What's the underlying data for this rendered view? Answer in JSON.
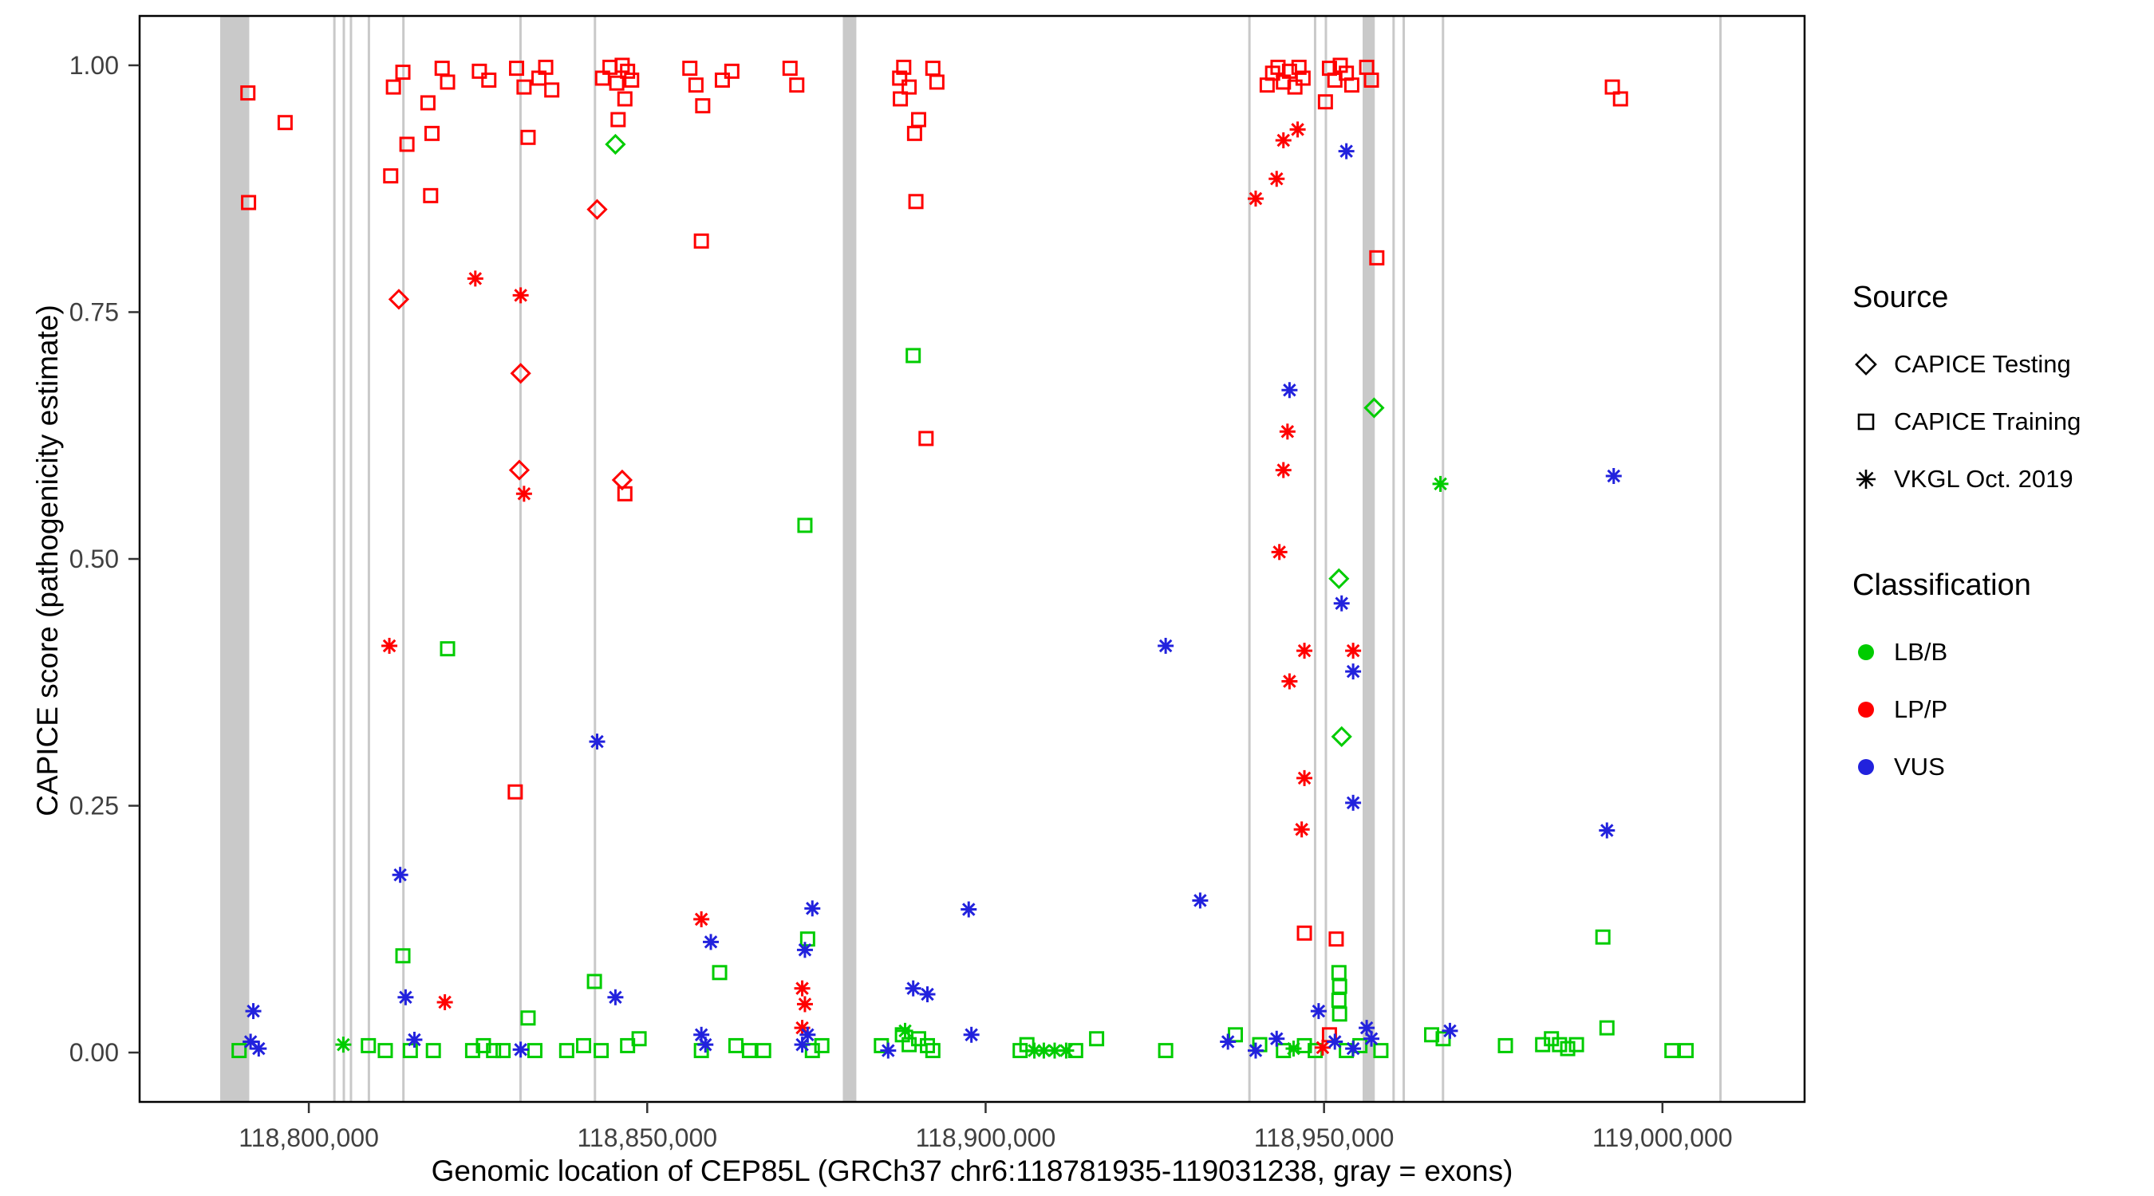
{
  "chart_data": {
    "type": "scatter",
    "title": "",
    "xlabel": "Genomic location of CEP85L (GRCh37 chr6:118781935-119031238, gray = exons)",
    "ylabel": "CAPICE score (pathogenicity estimate)",
    "xlim": [
      118775000,
      119021000
    ],
    "ylim": [
      -0.05,
      1.05
    ],
    "x_ticks": [
      118800000,
      118850000,
      118900000,
      118950000,
      119000000
    ],
    "x_tick_labels": [
      "118,800,000",
      "118,850,000",
      "118,900,000",
      "118,950,000",
      "119,000,000"
    ],
    "y_ticks": [
      0,
      0.25,
      0.5,
      0.75,
      1
    ],
    "y_tick_labels": [
      "0.00",
      "0.25",
      "0.50",
      "0.75",
      "1.00"
    ],
    "grid": false,
    "legend_position": "right",
    "exon_color": "#c9c9c9",
    "exons_gray": [
      [
        118786900,
        118791200
      ],
      [
        118803600,
        118803950
      ],
      [
        118805000,
        118805350
      ],
      [
        118806050,
        118806400
      ],
      [
        118808700,
        118809050
      ],
      [
        118813800,
        118814150
      ],
      [
        118831100,
        118831450
      ],
      [
        118842100,
        118842450
      ],
      [
        118878900,
        118880900
      ],
      [
        118938800,
        118939150
      ],
      [
        118948500,
        118948850
      ],
      [
        118950100,
        118950450
      ],
      [
        118955700,
        118957500
      ],
      [
        118960100,
        118960450
      ],
      [
        118961600,
        118961950
      ],
      [
        118967400,
        118967750
      ],
      [
        119008400,
        119008750
      ]
    ],
    "classification_colors": {
      "LB/B": "#00cc00",
      "LP/P": "#ff0000",
      "VUS": "#2222dd"
    },
    "source_shapes": {
      "CAPICE Testing": "diamond",
      "CAPICE Training": "square",
      "VKGL Oct. 2019": "asterisk"
    },
    "series": [
      {
        "source": "CAPICE Training",
        "classification": "LP/P",
        "points": [
          [
            118791000,
            0.972
          ],
          [
            118796500,
            0.942
          ],
          [
            118791100,
            0.861
          ],
          [
            118812500,
            0.978
          ],
          [
            118813900,
            0.993
          ],
          [
            118814500,
            0.92
          ],
          [
            118812100,
            0.888
          ],
          [
            118817600,
            0.962
          ],
          [
            118818200,
            0.931
          ],
          [
            118819700,
            0.997
          ],
          [
            118820500,
            0.983
          ],
          [
            118818000,
            0.868
          ],
          [
            118825200,
            0.994
          ],
          [
            118826600,
            0.985
          ],
          [
            118830700,
            0.997
          ],
          [
            118831800,
            0.978
          ],
          [
            118832400,
            0.927
          ],
          [
            118834000,
            0.987
          ],
          [
            118835000,
            0.998
          ],
          [
            118835900,
            0.975
          ],
          [
            118830500,
            0.264
          ],
          [
            118843400,
            0.987
          ],
          [
            118844500,
            0.998
          ],
          [
            118845500,
            0.982
          ],
          [
            118846300,
            1.0
          ],
          [
            118847100,
            0.994
          ],
          [
            118847700,
            0.985
          ],
          [
            118846700,
            0.966
          ],
          [
            118845700,
            0.945
          ],
          [
            118846700,
            0.566
          ],
          [
            118856300,
            0.997
          ],
          [
            118857200,
            0.98
          ],
          [
            118858200,
            0.959
          ],
          [
            118861100,
            0.985
          ],
          [
            118862500,
            0.994
          ],
          [
            118858000,
            0.822
          ],
          [
            118871100,
            0.997
          ],
          [
            118872100,
            0.98
          ],
          [
            118887300,
            0.987
          ],
          [
            118887900,
            0.998
          ],
          [
            118888700,
            0.978
          ],
          [
            118887400,
            0.966
          ],
          [
            118889500,
            0.931
          ],
          [
            118890100,
            0.945
          ],
          [
            118892200,
            0.997
          ],
          [
            118892800,
            0.983
          ],
          [
            118889700,
            0.862
          ],
          [
            118891200,
            0.622
          ],
          [
            118941600,
            0.98
          ],
          [
            118942400,
            0.992
          ],
          [
            118943200,
            0.998
          ],
          [
            118944000,
            0.983
          ],
          [
            118944900,
            0.994
          ],
          [
            118945700,
            0.978
          ],
          [
            118946300,
            0.998
          ],
          [
            118946900,
            0.987
          ],
          [
            118950200,
            0.963
          ],
          [
            118950800,
            0.997
          ],
          [
            118951600,
            0.985
          ],
          [
            118952400,
            1.0
          ],
          [
            118953300,
            0.992
          ],
          [
            118954100,
            0.98
          ],
          [
            118956300,
            0.998
          ],
          [
            118957000,
            0.985
          ],
          [
            118957800,
            0.805
          ],
          [
            118947100,
            0.121
          ],
          [
            118951800,
            0.115
          ],
          [
            118950800,
            0.018
          ],
          [
            118992600,
            0.978
          ],
          [
            118993800,
            0.966
          ]
        ]
      },
      {
        "source": "CAPICE Training",
        "classification": "LB/B",
        "points": [
          [
            118820500,
            0.409
          ],
          [
            118813900,
            0.098
          ],
          [
            118842200,
            0.072
          ],
          [
            118860700,
            0.081
          ],
          [
            118873700,
            0.115
          ],
          [
            118873300,
            0.534
          ],
          [
            118889300,
            0.706
          ],
          [
            118991200,
            0.117
          ],
          [
            118952200,
            0.081
          ],
          [
            118952300,
            0.067
          ],
          [
            118952200,
            0.053
          ],
          [
            118952300,
            0.039
          ],
          [
            118936900,
            0.018
          ],
          [
            118848800,
            0.014
          ],
          [
            118916400,
            0.014
          ],
          [
            118789700,
            0.002
          ],
          [
            118808800,
            0.007
          ],
          [
            118811300,
            0.002
          ],
          [
            118815000,
            0.002
          ],
          [
            118818400,
            0.002
          ],
          [
            118824200,
            0.002
          ],
          [
            118825800,
            0.007
          ],
          [
            118827300,
            0.002
          ],
          [
            118828700,
            0.002
          ],
          [
            118832400,
            0.035
          ],
          [
            118833400,
            0.002
          ],
          [
            118838100,
            0.002
          ],
          [
            118840600,
            0.007
          ],
          [
            118843200,
            0.002
          ],
          [
            118847100,
            0.007
          ],
          [
            118858000,
            0.002
          ],
          [
            118863100,
            0.007
          ],
          [
            118865100,
            0.002
          ],
          [
            118867200,
            0.002
          ],
          [
            118874400,
            0.002
          ],
          [
            118875800,
            0.007
          ],
          [
            118884600,
            0.007
          ],
          [
            118887700,
            0.018
          ],
          [
            118888700,
            0.008
          ],
          [
            118890100,
            0.014
          ],
          [
            118891400,
            0.007
          ],
          [
            118892200,
            0.002
          ],
          [
            118905100,
            0.002
          ],
          [
            118906100,
            0.008
          ],
          [
            118913300,
            0.002
          ],
          [
            118926600,
            0.002
          ],
          [
            118940500,
            0.008
          ],
          [
            118944000,
            0.002
          ],
          [
            118947100,
            0.007
          ],
          [
            118948700,
            0.002
          ],
          [
            118953300,
            0.002
          ],
          [
            118955300,
            0.007
          ],
          [
            118958400,
            0.002
          ],
          [
            118965900,
            0.018
          ],
          [
            118967600,
            0.014
          ],
          [
            118976800,
            0.007
          ],
          [
            118982300,
            0.008
          ],
          [
            118983600,
            0.014
          ],
          [
            118984800,
            0.008
          ],
          [
            118986000,
            0.004
          ],
          [
            118987300,
            0.008
          ],
          [
            118991800,
            0.025
          ],
          [
            119001400,
            0.002
          ],
          [
            119003500,
            0.002
          ]
        ]
      },
      {
        "source": "CAPICE Testing",
        "classification": "LP/P",
        "points": [
          [
            118813300,
            0.763
          ],
          [
            118831300,
            0.688
          ],
          [
            118831100,
            0.59
          ],
          [
            118842600,
            0.854
          ],
          [
            118846300,
            0.58
          ]
        ]
      },
      {
        "source": "CAPICE Testing",
        "classification": "LB/B",
        "points": [
          [
            118845300,
            0.92
          ],
          [
            118957400,
            0.653
          ],
          [
            118952200,
            0.48
          ],
          [
            118952600,
            0.32
          ]
        ]
      },
      {
        "source": "VKGL Oct. 2019",
        "classification": "LP/P",
        "points": [
          [
            118824600,
            0.784
          ],
          [
            118831300,
            0.767
          ],
          [
            118831800,
            0.566
          ],
          [
            118811900,
            0.412
          ],
          [
            118820100,
            0.051
          ],
          [
            118858000,
            0.135
          ],
          [
            118872900,
            0.065
          ],
          [
            118873300,
            0.049
          ],
          [
            118872900,
            0.025
          ],
          [
            118939900,
            0.865
          ],
          [
            118943000,
            0.885
          ],
          [
            118944000,
            0.924
          ],
          [
            118946100,
            0.935
          ],
          [
            118944600,
            0.629
          ],
          [
            118944000,
            0.59
          ],
          [
            118943400,
            0.507
          ],
          [
            118947100,
            0.407
          ],
          [
            118954300,
            0.407
          ],
          [
            118944900,
            0.376
          ],
          [
            118947100,
            0.278
          ],
          [
            118946700,
            0.226
          ],
          [
            118949800,
            0.005
          ]
        ]
      },
      {
        "source": "VKGL Oct. 2019",
        "classification": "LB/B",
        "points": [
          [
            118805100,
            0.008
          ],
          [
            118888100,
            0.022
          ],
          [
            118907200,
            0.002
          ],
          [
            118908600,
            0.002
          ],
          [
            118910200,
            0.002
          ],
          [
            118911900,
            0.002
          ],
          [
            118967200,
            0.576
          ],
          [
            118945500,
            0.004
          ]
        ]
      },
      {
        "source": "VKGL Oct. 2019",
        "classification": "VUS",
        "points": [
          [
            118791800,
            0.042
          ],
          [
            118791400,
            0.011
          ],
          [
            118792600,
            0.004
          ],
          [
            118813500,
            0.18
          ],
          [
            118814300,
            0.056
          ],
          [
            118815600,
            0.013
          ],
          [
            118831300,
            0.003
          ],
          [
            118842600,
            0.315
          ],
          [
            118845300,
            0.056
          ],
          [
            118858000,
            0.018
          ],
          [
            118859400,
            0.112
          ],
          [
            118858600,
            0.008
          ],
          [
            118874400,
            0.146
          ],
          [
            118873300,
            0.104
          ],
          [
            118872900,
            0.008
          ],
          [
            118873700,
            0.018
          ],
          [
            118885600,
            0.002
          ],
          [
            118889300,
            0.065
          ],
          [
            118891400,
            0.059
          ],
          [
            118897500,
            0.145
          ],
          [
            118897900,
            0.018
          ],
          [
            118926600,
            0.412
          ],
          [
            118931700,
            0.154
          ],
          [
            118935800,
            0.011
          ],
          [
            118939900,
            0.002
          ],
          [
            118953300,
            0.913
          ],
          [
            118944900,
            0.671
          ],
          [
            118952600,
            0.455
          ],
          [
            118954300,
            0.386
          ],
          [
            118954300,
            0.253
          ],
          [
            118949200,
            0.042
          ],
          [
            118951600,
            0.011
          ],
          [
            118954300,
            0.004
          ],
          [
            118956300,
            0.025
          ],
          [
            118957000,
            0.014
          ],
          [
            118943000,
            0.014
          ],
          [
            118968600,
            0.022
          ],
          [
            118992800,
            0.584
          ],
          [
            118991800,
            0.225
          ]
        ]
      }
    ]
  },
  "legend": {
    "source": {
      "title": "Source",
      "items": [
        {
          "label": "CAPICE Testing",
          "shape": "diamond"
        },
        {
          "label": "CAPICE Training",
          "shape": "square"
        },
        {
          "label": "VKGL Oct. 2019",
          "shape": "asterisk"
        }
      ]
    },
    "classification": {
      "title": "Classification",
      "items": [
        {
          "label": "LB/B",
          "color": "#00cc00"
        },
        {
          "label": "LP/P",
          "color": "#ff0000"
        },
        {
          "label": "VUS",
          "color": "#2222dd"
        }
      ]
    }
  }
}
